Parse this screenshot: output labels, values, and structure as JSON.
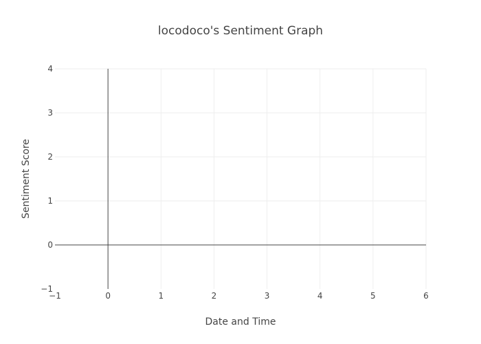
{
  "chart_data": {
    "type": "line",
    "title": "locodoco's Sentiment Graph",
    "xlabel": "Date and Time",
    "ylabel": "Sentiment Score",
    "xlim": [
      -1,
      6
    ],
    "ylim": [
      -1,
      4
    ],
    "x_ticks": [
      "−1",
      "0",
      "1",
      "2",
      "3",
      "4",
      "5",
      "6"
    ],
    "y_ticks": [
      "−1",
      "0",
      "1",
      "2",
      "3",
      "4"
    ],
    "series": [],
    "grid": true,
    "legend": "none"
  }
}
